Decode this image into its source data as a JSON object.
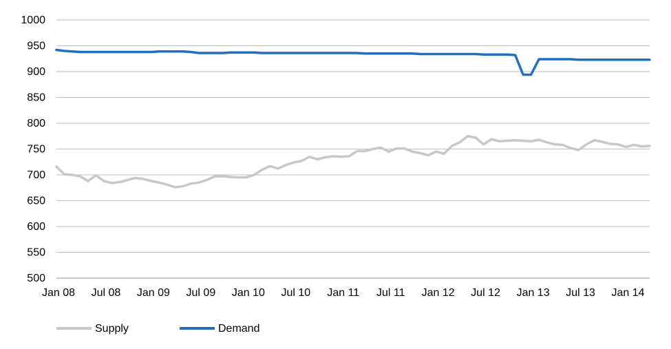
{
  "chart_data": {
    "type": "line",
    "title": "",
    "xlabel": "",
    "ylabel": "",
    "ylim": [
      500,
      1000
    ],
    "yticks": [
      500,
      550,
      600,
      650,
      700,
      750,
      800,
      850,
      900,
      950,
      1000
    ],
    "x_tick_labels": [
      "Jan 08",
      "Jul 08",
      "Jan 09",
      "Jul 09",
      "Jan 10",
      "Jul 10",
      "Jan 11",
      "Jul 11",
      "Jan 12",
      "Jul 12",
      "Jan 13",
      "Jul 13",
      "Jan 14"
    ],
    "x_range": [
      "2008-01",
      "2014-06"
    ],
    "grid": "horizontal",
    "legend_position": "bottom-left",
    "series": [
      {
        "name": "Supply",
        "color": "#c8c8c8",
        "values": [
          716,
          701,
          700,
          697,
          688,
          699,
          688,
          684,
          686,
          690,
          694,
          692,
          688,
          685,
          681,
          676,
          678,
          683,
          685,
          690,
          697,
          697,
          696,
          695,
          695,
          700,
          710,
          717,
          712,
          719,
          724,
          727,
          735,
          730,
          734,
          736,
          735,
          736,
          746,
          746,
          750,
          753,
          745,
          751,
          751,
          745,
          742,
          738,
          745,
          741,
          756,
          763,
          775,
          772,
          759,
          769,
          765,
          766,
          767,
          766,
          765,
          768,
          763,
          759,
          758,
          752,
          748,
          759,
          767,
          764,
          760,
          759,
          754,
          758,
          755,
          756
        ]
      },
      {
        "name": "Demand",
        "color": "#1f6fc5",
        "values": [
          942,
          940,
          939,
          938,
          938,
          938,
          938,
          938,
          938,
          938,
          938,
          938,
          938,
          939,
          939,
          939,
          939,
          938,
          936,
          936,
          936,
          936,
          937,
          937,
          937,
          937,
          936,
          936,
          936,
          936,
          936,
          936,
          936,
          936,
          936,
          936,
          936,
          936,
          936,
          935,
          935,
          935,
          935,
          935,
          935,
          935,
          934,
          934,
          934,
          934,
          934,
          934,
          934,
          934,
          933,
          933,
          933,
          933,
          932,
          894,
          894,
          924,
          924,
          924,
          924,
          924,
          923,
          923,
          923,
          923,
          923,
          923,
          923,
          923,
          923,
          923
        ]
      }
    ]
  }
}
